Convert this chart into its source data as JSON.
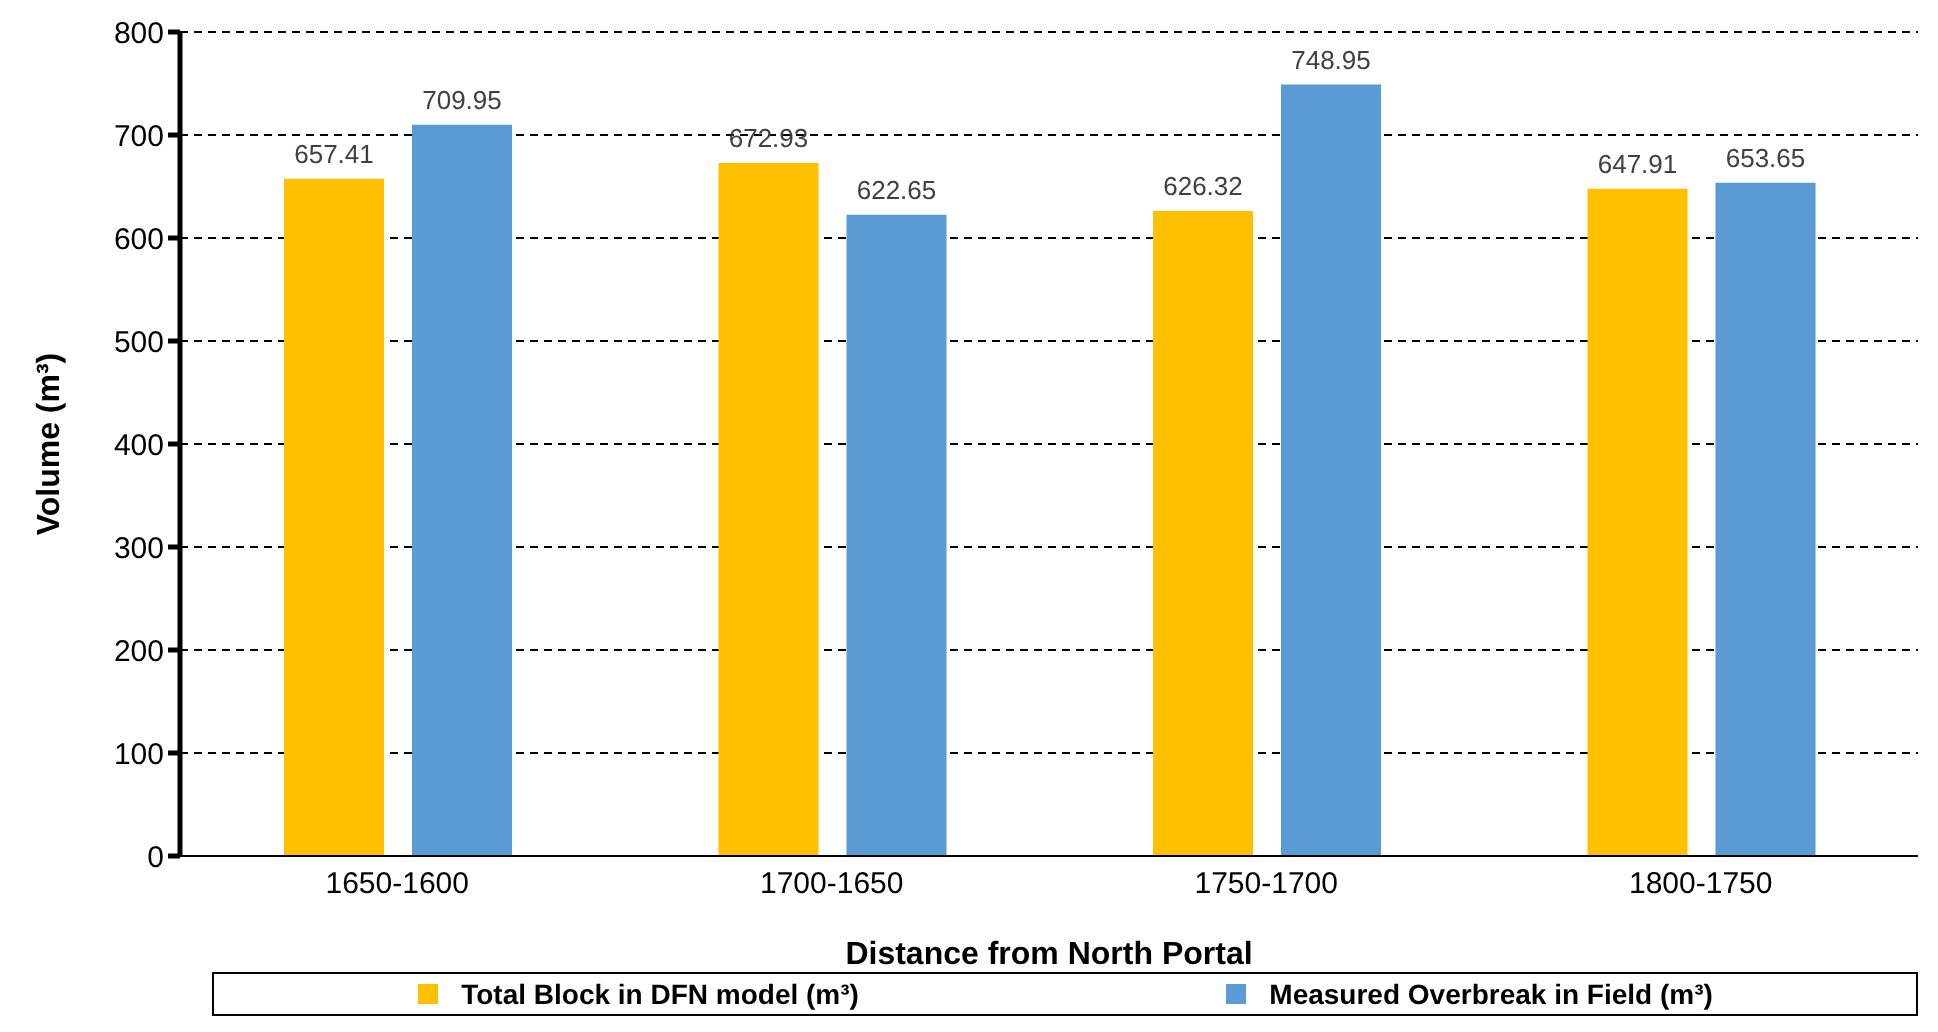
{
  "chart_data": {
    "type": "bar",
    "xlabel": "Distance from North Portal",
    "ylabel": "Volume (m³)",
    "categories": [
      "1650-1600",
      "1700-1650",
      "1750-1700",
      "1800-1750"
    ],
    "series": [
      {
        "name": "Total Block in DFN model (m³)",
        "color": "#ffc000",
        "values": [
          657.41,
          672.93,
          626.32,
          647.91
        ]
      },
      {
        "name": "Measured Overbreak in Field (m³)",
        "color": "#5b9bd5",
        "values": [
          709.95,
          622.65,
          748.95,
          653.65
        ]
      }
    ],
    "ylim": [
      0,
      800
    ],
    "yticks": [
      0,
      100,
      200,
      300,
      400,
      500,
      600,
      700,
      800
    ],
    "grid": "y",
    "legend": "bottom",
    "data_labels": true
  }
}
